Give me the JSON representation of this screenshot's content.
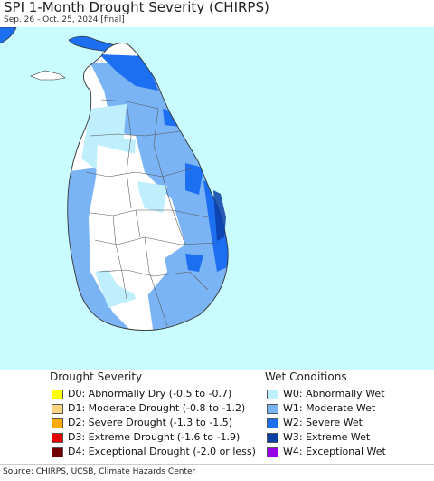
{
  "header": {
    "title": "SPI 1-Month Drought Severity (CHIRPS)",
    "subtitle": "Sep. 26 - Oct. 25, 2024 [final]"
  },
  "map": {
    "ocean_color": "#c8fcff",
    "land_base_color": "#ffffff",
    "border_color": "#333333",
    "district_line_color": "#555555"
  },
  "legend": {
    "drought_heading": "Drought Severity",
    "wet_heading": "Wet Conditions",
    "drought": [
      {
        "label": "D0: Abnormally Dry (-0.5 to -0.7)",
        "color": "#ffff00"
      },
      {
        "label": "D1: Moderate Drought (-0.8 to -1.2)",
        "color": "#fcd37f"
      },
      {
        "label": "D2: Severe Drought (-1.3 to -1.5)",
        "color": "#ffaa00"
      },
      {
        "label": "D3: Extreme Drought (-1.6 to -1.9)",
        "color": "#e60000"
      },
      {
        "label": "D4: Exceptional Drought (-2.0 or less)",
        "color": "#730000"
      }
    ],
    "wet": [
      {
        "label": "W0: Abnormally Wet",
        "color": "#bfeefc"
      },
      {
        "label": "W1: Moderate Wet",
        "color": "#7bb4f5"
      },
      {
        "label": "W2: Severe Wet",
        "color": "#1d6ff2"
      },
      {
        "label": "W3: Extreme Wet",
        "color": "#0a3fa8"
      },
      {
        "label": "W4: Exceptional Wet",
        "color": "#9a00e6"
      }
    ]
  },
  "footer": {
    "source": "Source: CHIRPS, UCSB, Climate Hazards Center"
  }
}
